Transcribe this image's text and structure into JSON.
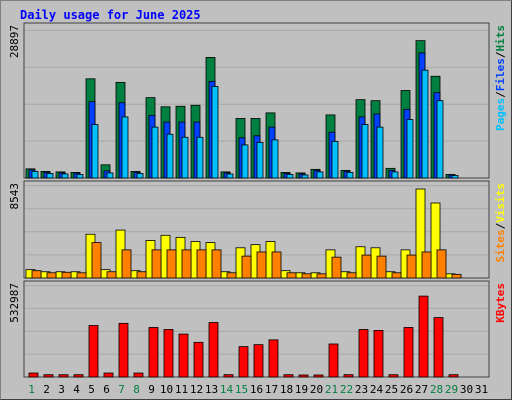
{
  "chart_data": {
    "title": "Daily usage for June 2025",
    "type": "bar",
    "days": [
      "1",
      "2",
      "3",
      "4",
      "5",
      "6",
      "7",
      "8",
      "9",
      "10",
      "11",
      "12",
      "13",
      "14",
      "15",
      "16",
      "17",
      "18",
      "19",
      "20",
      "21",
      "22",
      "23",
      "24",
      "25",
      "26",
      "27",
      "28",
      "29",
      "30",
      "31"
    ],
    "weekend_days": [
      "1",
      "7",
      "8",
      "14",
      "15",
      "21",
      "22",
      "28",
      "29"
    ],
    "panels": [
      {
        "id": "hits-files-pages",
        "max_label": "28897",
        "ylim": [
          0,
          28897
        ],
        "legend": [
          "Pages",
          "/",
          "Files",
          "/",
          "Hits"
        ],
        "legend_colors": [
          "#00c0ff",
          "#000000",
          "#0040ff",
          "#000000",
          "#008040"
        ],
        "series": [
          {
            "name": "Hits",
            "color": "#008040",
            "values": [
              1800,
              1300,
              1200,
              1100,
              19500,
              2600,
              18800,
              1300,
              15800,
              14000,
              14100,
              14300,
              23700,
              1200,
              11700,
              11700,
              12800,
              1100,
              1000,
              1700,
              12400,
              1500,
              15400,
              15200,
              1900,
              17200,
              27000,
              20000,
              700,
              0,
              0
            ]
          },
          {
            "name": "Files",
            "color": "#0040ff",
            "values": [
              1600,
              1100,
              1000,
              950,
              15000,
              1400,
              14800,
              1100,
              12300,
              11000,
              11000,
              11000,
              19000,
              1000,
              7900,
              8300,
              10000,
              900,
              800,
              1500,
              9000,
              1300,
              12000,
              12600,
              1500,
              13500,
              24600,
              16800,
              600,
              0,
              0
            ]
          },
          {
            "name": "Pages",
            "color": "#00c0ff",
            "values": [
              1300,
              900,
              800,
              700,
              10500,
              1000,
              12000,
              900,
              10000,
              8600,
              8000,
              8000,
              18000,
              800,
              6500,
              7000,
              7500,
              700,
              600,
              1200,
              7200,
              1100,
              10500,
              10000,
              1200,
              11500,
              21200,
              15200,
              500,
              0,
              0
            ]
          }
        ]
      },
      {
        "id": "visits-sites",
        "max_label": "8543",
        "ylim": [
          0,
          8543
        ],
        "legend": [
          "Sites",
          "/",
          "Visits"
        ],
        "legend_colors": [
          "#ff8000",
          "#000000",
          "#ffff00"
        ],
        "series": [
          {
            "name": "Visits",
            "color": "#ffff00",
            "values": [
              800,
              600,
              600,
              600,
              4200,
              800,
              4600,
              700,
              3600,
              4100,
              3900,
              3500,
              3400,
              600,
              2900,
              3200,
              3500,
              700,
              500,
              500,
              2700,
              600,
              3000,
              2900,
              600,
              2700,
              8543,
              7200,
              400,
              0,
              0
            ]
          },
          {
            "name": "Sites",
            "color": "#ff8000",
            "values": [
              700,
              500,
              550,
              500,
              3400,
              600,
              2700,
              600,
              2700,
              2700,
              2700,
              2700,
              2700,
              500,
              2100,
              2500,
              2500,
              500,
              400,
              400,
              2000,
              500,
              2200,
              2100,
              500,
              2200,
              2500,
              2700,
              350,
              0,
              0
            ]
          }
        ]
      },
      {
        "id": "kbytes",
        "max_label": "532987",
        "ylim": [
          0,
          532987
        ],
        "legend": [
          "KBytes"
        ],
        "legend_colors": [
          "#ff0000"
        ],
        "series": [
          {
            "name": "KBytes",
            "color": "#ff0000",
            "values": [
              24000,
              14000,
              14000,
              14000,
              312000,
              24000,
              325000,
              24000,
              300000,
              288000,
              260000,
              210000,
              330000,
              14000,
              184000,
              196000,
              225000,
              14000,
              3000,
              7000,
              200000,
              14000,
              288000,
              282000,
              14000,
              300000,
              490000,
              360000,
              14000,
              0,
              0
            ]
          }
        ]
      }
    ]
  }
}
